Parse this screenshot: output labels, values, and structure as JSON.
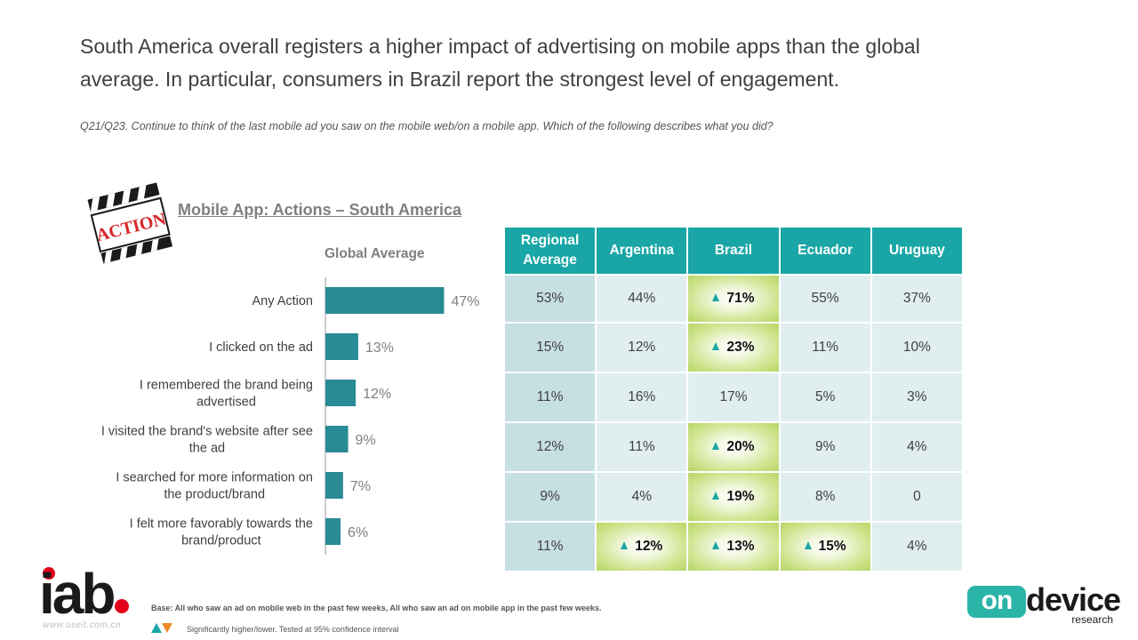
{
  "headline": {
    "line1": "South America overall registers a higher impact of advertising on mobile apps than the global",
    "line2": "average. In particular, consumers in Brazil report the strongest level of engagement."
  },
  "question": "Q21/Q23. Continue to think of the last mobile ad you saw on the mobile web/on a mobile app. Which of the following describes what you did?",
  "clapper_text": "ACTION",
  "section_title": "Mobile App: Actions –  South America",
  "chart_data": {
    "type": "bar",
    "title": "Global Average",
    "orientation": "horizontal",
    "categories": [
      [
        "Any Action"
      ],
      [
        "I clicked on the ad"
      ],
      [
        "I remembered the brand being",
        "advertised"
      ],
      [
        "I visited the brand's website after see",
        "the ad"
      ],
      [
        "I searched for more information on",
        "the product/brand"
      ],
      [
        "I felt more favorably towards the",
        "brand/product"
      ]
    ],
    "values": [
      47,
      13,
      12,
      9,
      7,
      6
    ],
    "value_labels": [
      "47%",
      "13%",
      "12%",
      "9%",
      "7%",
      "6%"
    ],
    "xlim": [
      0,
      50
    ],
    "bar_color": "#2a8a96"
  },
  "table": {
    "headers": [
      [
        "Regional",
        "Average"
      ],
      [
        "Argentina"
      ],
      [
        "Brazil"
      ],
      [
        "Ecuador"
      ],
      [
        "Uruguay"
      ]
    ],
    "rows": [
      [
        {
          "v": "53%"
        },
        {
          "v": "44%"
        },
        {
          "v": "71%",
          "sig": "up"
        },
        {
          "v": "55%"
        },
        {
          "v": "37%"
        }
      ],
      [
        {
          "v": "15%"
        },
        {
          "v": "12%"
        },
        {
          "v": "23%",
          "sig": "up"
        },
        {
          "v": "11%"
        },
        {
          "v": "10%"
        }
      ],
      [
        {
          "v": "11%"
        },
        {
          "v": "16%"
        },
        {
          "v": "17%"
        },
        {
          "v": "5%"
        },
        {
          "v": "3%"
        }
      ],
      [
        {
          "v": "12%"
        },
        {
          "v": "11%"
        },
        {
          "v": "20%",
          "sig": "up"
        },
        {
          "v": "9%"
        },
        {
          "v": "4%"
        }
      ],
      [
        {
          "v": "9%"
        },
        {
          "v": "4%"
        },
        {
          "v": "19%",
          "sig": "up"
        },
        {
          "v": "8%"
        },
        {
          "v": "0"
        }
      ],
      [
        {
          "v": "11%"
        },
        {
          "v": "12%",
          "sig": "up"
        },
        {
          "v": "13%",
          "sig": "up"
        },
        {
          "v": "15%",
          "sig": "up"
        },
        {
          "v": "4%"
        }
      ]
    ],
    "header_color": "#1aa6a6",
    "up_color": "#1aa6a6",
    "down_color": "#f08a24"
  },
  "footer": {
    "iab_logo": "iab",
    "watermark": "www.useit.com.cn",
    "base_note": "Base: All who saw an ad on mobile web in the past few weeks, All who saw an ad on mobile app in the past few weeks.",
    "significance_note": "Significantly higher/lower. Tested at 95% confidence interval",
    "od_logo_on": "on",
    "od_logo_device": "device",
    "od_logo_research": "research"
  }
}
